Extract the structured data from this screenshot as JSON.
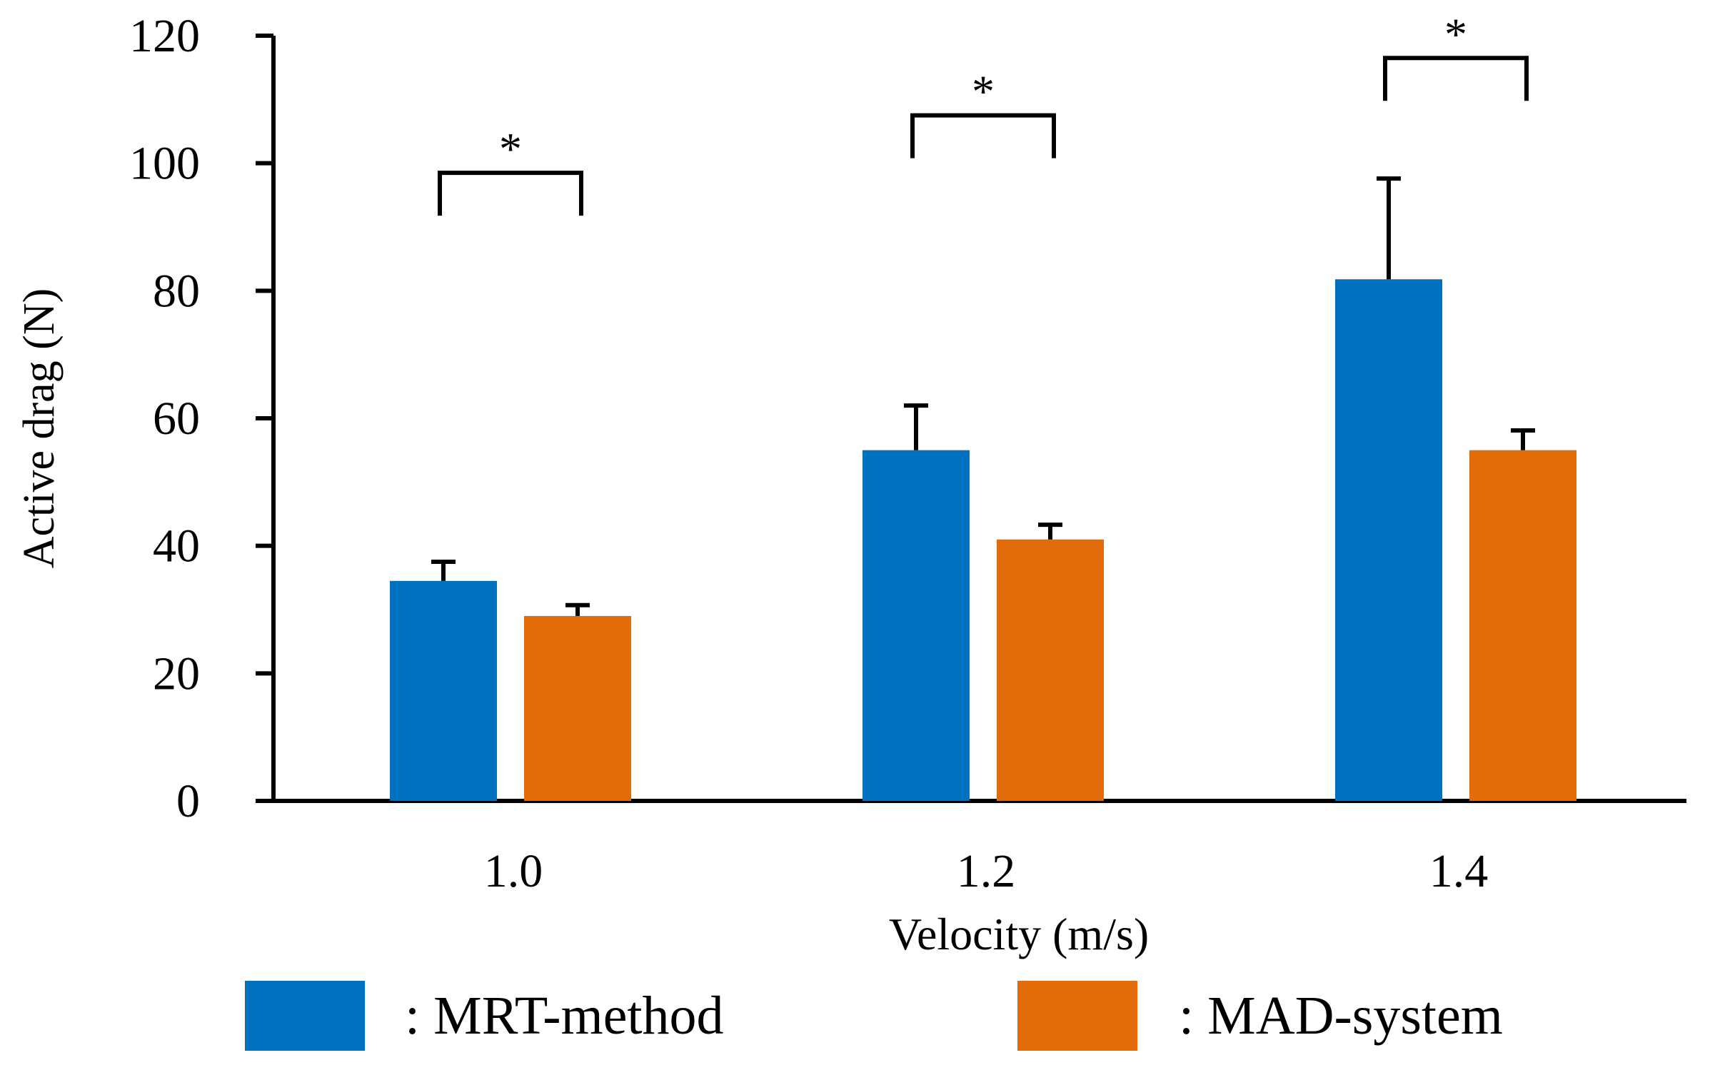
{
  "chart_data": {
    "type": "bar",
    "title": "",
    "xlabel": "Velocity (m/s)",
    "ylabel": "Active drag (N)",
    "categories": [
      "1.0",
      "1.2",
      "1.4"
    ],
    "ylim": [
      0,
      120
    ],
    "yticks": [
      0,
      20,
      40,
      60,
      80,
      100,
      120
    ],
    "ytick_labels": [
      "0",
      "20",
      "40",
      "60",
      "80",
      "100",
      "120"
    ],
    "grid": false,
    "legend_position": "bottom",
    "series": [
      {
        "name": "MRT-method",
        "legend_label": ": MRT-method",
        "color": "#0070C0",
        "values": [
          34.5,
          55,
          81.8
        ],
        "errors": [
          3.0,
          7.0,
          15.8
        ]
      },
      {
        "name": "MAD-system",
        "legend_label": ": MAD-system",
        "color": "#E36C0A",
        "values": [
          29,
          41,
          55
        ],
        "errors": [
          1.7,
          2.3,
          3.1
        ]
      }
    ],
    "significance": [
      {
        "category": "1.0",
        "marker": "*",
        "y": 98.5
      },
      {
        "category": "1.2",
        "marker": "*",
        "y": 107.5
      },
      {
        "category": "1.4",
        "marker": "*",
        "y": 116.5
      }
    ]
  }
}
